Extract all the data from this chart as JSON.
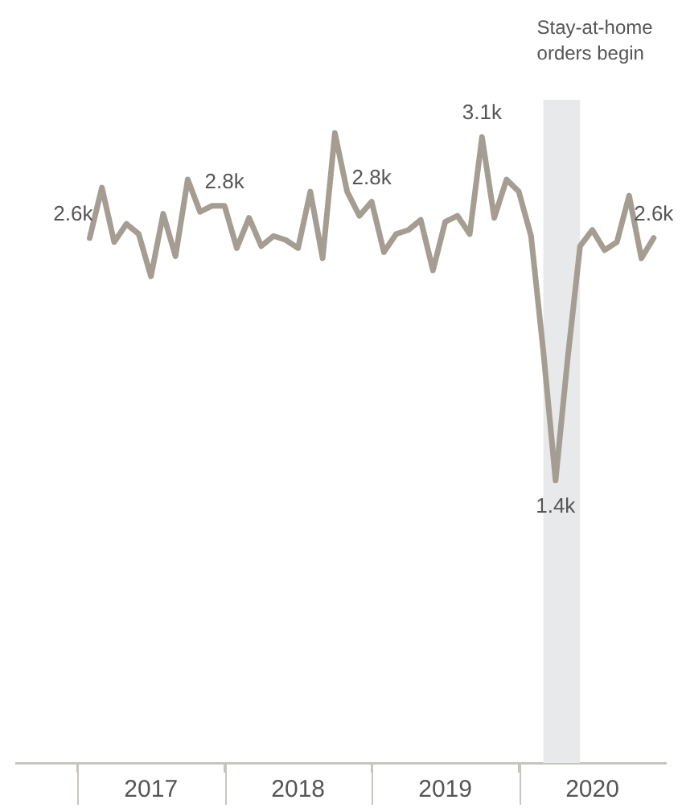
{
  "chart_data": {
    "type": "line",
    "x": [
      "2017-02",
      "2017-03",
      "2017-04",
      "2017-05",
      "2017-06",
      "2017-07",
      "2017-08",
      "2017-09",
      "2017-10",
      "2017-11",
      "2017-12",
      "2018-01",
      "2018-02",
      "2018-03",
      "2018-04",
      "2018-05",
      "2018-06",
      "2018-07",
      "2018-08",
      "2018-09",
      "2018-10",
      "2018-11",
      "2018-12",
      "2019-01",
      "2019-02",
      "2019-03",
      "2019-04",
      "2019-05",
      "2019-06",
      "2019-07",
      "2019-08",
      "2019-09",
      "2019-10",
      "2019-11",
      "2019-12",
      "2020-01",
      "2020-02",
      "2020-03",
      "2020-04",
      "2020-05",
      "2020-06",
      "2020-07",
      "2020-08",
      "2020-09",
      "2020-10",
      "2020-11",
      "2020-12"
    ],
    "series": [
      {
        "color": "#a59d92",
        "values": [
          2.6,
          2.85,
          2.58,
          2.67,
          2.62,
          2.41,
          2.72,
          2.51,
          2.89,
          2.73,
          2.76,
          2.76,
          2.55,
          2.7,
          2.56,
          2.61,
          2.59,
          2.55,
          2.83,
          2.5,
          3.12,
          2.83,
          2.71,
          2.78,
          2.53,
          2.62,
          2.64,
          2.69,
          2.44,
          2.68,
          2.71,
          2.62,
          3.1,
          2.7,
          2.89,
          2.83,
          2.61,
          2.04,
          1.4,
          2.01,
          2.56,
          2.64,
          2.54,
          2.58,
          2.81,
          2.5,
          2.6
        ],
        "value_labels": [
          "2.6k",
          null,
          null,
          null,
          null,
          null,
          null,
          null,
          null,
          null,
          null,
          "2.8k",
          null,
          null,
          null,
          null,
          null,
          null,
          null,
          null,
          null,
          null,
          null,
          "2.8k",
          null,
          null,
          null,
          null,
          null,
          null,
          null,
          null,
          "3.1k",
          null,
          null,
          null,
          null,
          null,
          "1.4k",
          null,
          null,
          null,
          null,
          null,
          null,
          null,
          "2.6k"
        ]
      }
    ],
    "xlim": [
      "2016-08",
      "2021-01"
    ],
    "xticks": [
      {
        "value": "2017-01",
        "label": null
      },
      {
        "value": "2017-07",
        "label": "2017"
      },
      {
        "value": "2018-01",
        "label": null
      },
      {
        "value": "2018-07",
        "label": "2018"
      },
      {
        "value": "2019-01",
        "label": null
      },
      {
        "value": "2019-07",
        "label": "2019"
      },
      {
        "value": "2020-01",
        "label": null
      },
      {
        "value": "2020-07",
        "label": "2020"
      }
    ],
    "tick_labels": "x",
    "grid": false,
    "legend": false,
    "marker": "none",
    "line_style": "solid",
    "bands": [
      {
        "axis": "x",
        "from": "2020-03",
        "to": "2020-06",
        "label": "Stay-at-home orders begin",
        "color": "#e8e9eb"
      }
    ]
  }
}
